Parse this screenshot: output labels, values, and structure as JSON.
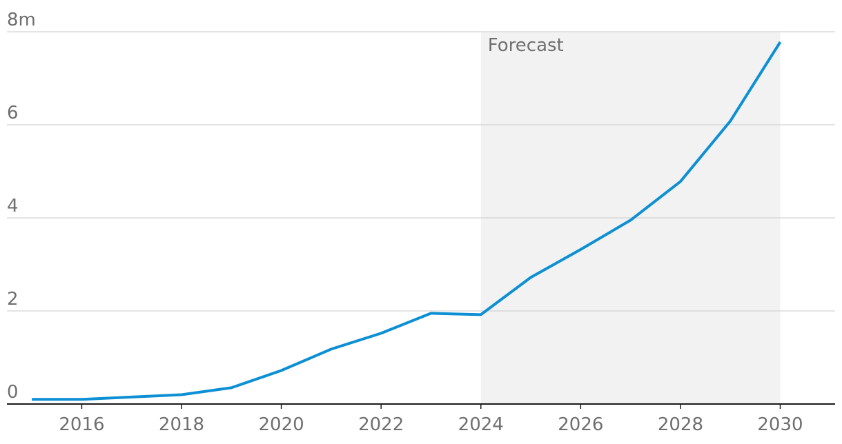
{
  "chart_data": {
    "type": "line",
    "title": "",
    "xlabel": "",
    "ylabel": "",
    "y_unit_suffix": "m",
    "xlim": [
      2014.5,
      2031.1
    ],
    "ylim": [
      0,
      8
    ],
    "yticks": [
      "0",
      "2",
      "4",
      "6",
      "8m"
    ],
    "xticks": [
      "2016",
      "2018",
      "2020",
      "2022",
      "2024",
      "2026",
      "2028",
      "2030"
    ],
    "grid": true,
    "forecast": {
      "label": "Forecast",
      "from": 2024,
      "to": 2030
    },
    "series": [
      {
        "color": "#0d8fd3",
        "x": [
          2015,
          2016,
          2017,
          2018,
          2019,
          2020,
          2021,
          2022,
          2023,
          2024,
          2025,
          2026,
          2027,
          2028,
          2029,
          2030
        ],
        "values": [
          0.1,
          0.1,
          0.15,
          0.2,
          0.35,
          0.72,
          1.18,
          1.52,
          1.95,
          1.92,
          2.72,
          3.32,
          3.95,
          4.78,
          6.08,
          7.78
        ]
      }
    ]
  }
}
